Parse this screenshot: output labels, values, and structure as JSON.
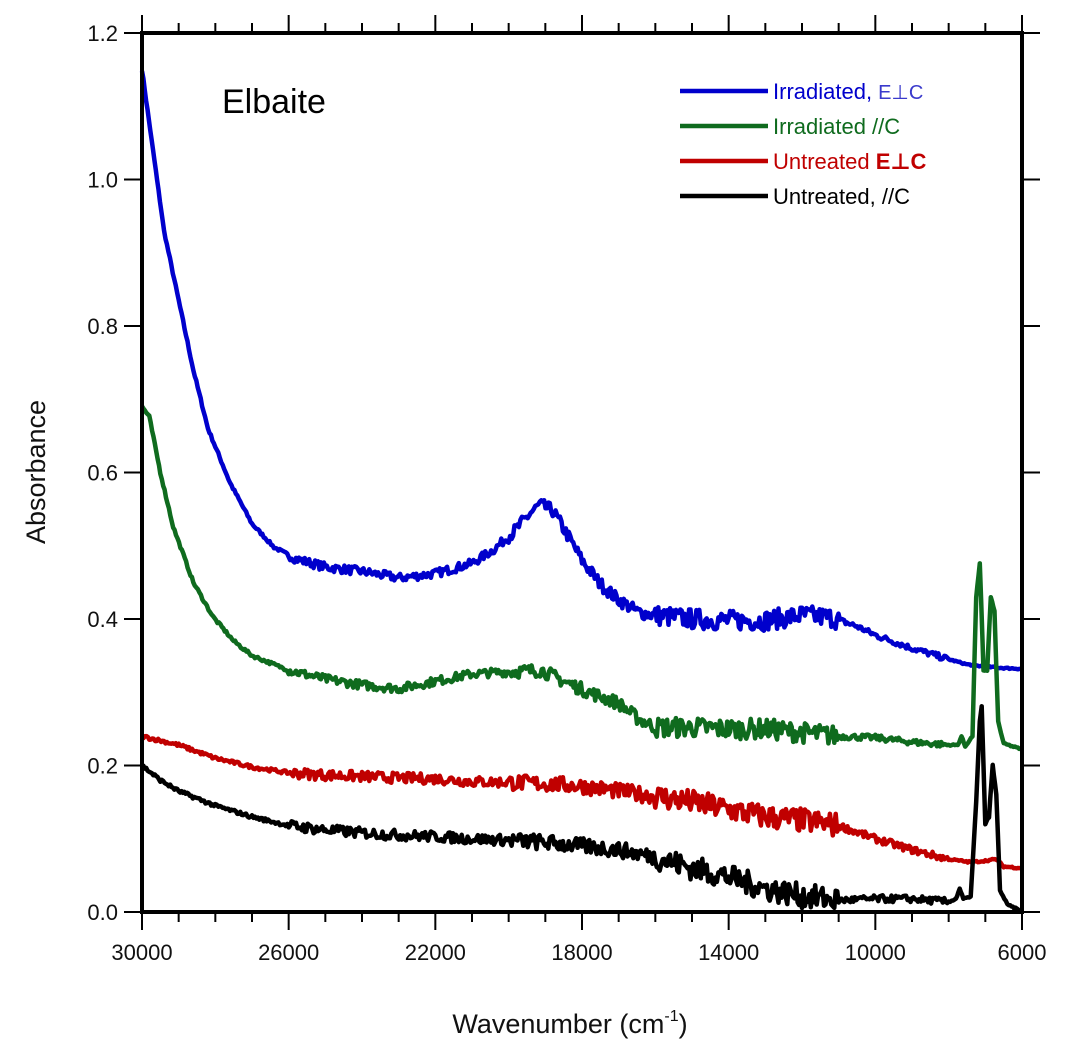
{
  "chart_data": {
    "type": "line",
    "title": "",
    "annotation": "Elbaite",
    "xlabel": "Wavenumber (cm",
    "xlabel_sup": "-1",
    "xlabel_close": ")",
    "ylabel": "Absorbance",
    "xlim": [
      30000,
      6000
    ],
    "ylim": [
      0,
      1.2
    ],
    "x_reversed": true,
    "x_major_ticks": [
      30000,
      26000,
      22000,
      18000,
      14000,
      10000,
      6000
    ],
    "x_tick_labels": [
      "30000",
      "26000",
      "22000",
      "18000",
      "14000",
      "10000",
      "6000"
    ],
    "x_minor_step": 1000,
    "y_major_ticks": [
      0.0,
      0.2,
      0.4,
      0.6,
      0.8,
      1.0,
      1.2
    ],
    "y_tick_labels": [
      "0.0",
      "0.2",
      "0.4",
      "0.6",
      "0.8",
      "1.0",
      "1.2"
    ],
    "grid": false,
    "legend_position": "top-right",
    "series": [
      {
        "name": "Irradiated, E⊥C",
        "legend_main": "Irradiated, ",
        "legend_suffix": "E⊥C",
        "color": "#0000cc",
        "points": [
          [
            30000,
            1.15
          ],
          [
            29700,
            1.04
          ],
          [
            29400,
            0.93
          ],
          [
            29000,
            0.835
          ],
          [
            28600,
            0.74
          ],
          [
            28200,
            0.66
          ],
          [
            27600,
            0.586
          ],
          [
            27000,
            0.53
          ],
          [
            26400,
            0.498
          ],
          [
            25800,
            0.482
          ],
          [
            25000,
            0.471
          ],
          [
            24000,
            0.465
          ],
          [
            23000,
            0.456
          ],
          [
            22000,
            0.462
          ],
          [
            21000,
            0.476
          ],
          [
            20400,
            0.495
          ],
          [
            19800,
            0.522
          ],
          [
            19400,
            0.545
          ],
          [
            19150,
            0.556
          ],
          [
            18800,
            0.548
          ],
          [
            18400,
            0.515
          ],
          [
            18000,
            0.48
          ],
          [
            17500,
            0.448
          ],
          [
            17100,
            0.43
          ],
          [
            16500,
            0.41
          ],
          [
            16000,
            0.405
          ],
          [
            15000,
            0.4
          ],
          [
            14000,
            0.398
          ],
          [
            13000,
            0.398
          ],
          [
            12000,
            0.405
          ],
          [
            11200,
            0.402
          ],
          [
            10500,
            0.39
          ],
          [
            10000,
            0.378
          ],
          [
            9000,
            0.36
          ],
          [
            8000,
            0.345
          ],
          [
            7500,
            0.338
          ],
          [
            7200,
            0.336
          ],
          [
            6500,
            0.333
          ],
          [
            6000,
            0.332
          ]
        ]
      },
      {
        "name": "Irradiated //C",
        "legend_main": "Irradiated //C",
        "legend_suffix": "",
        "color": "#0f6b1e",
        "points": [
          [
            30000,
            0.69
          ],
          [
            29800,
            0.676
          ],
          [
            29500,
            0.6
          ],
          [
            29150,
            0.526
          ],
          [
            28600,
            0.45
          ],
          [
            28064,
            0.403
          ],
          [
            27500,
            0.37
          ],
          [
            27000,
            0.35
          ],
          [
            26000,
            0.33
          ],
          [
            25000,
            0.318
          ],
          [
            24000,
            0.31
          ],
          [
            23000,
            0.305
          ],
          [
            22000,
            0.315
          ],
          [
            21000,
            0.325
          ],
          [
            20000,
            0.328
          ],
          [
            19100,
            0.33
          ],
          [
            18500,
            0.315
          ],
          [
            17800,
            0.3
          ],
          [
            17000,
            0.285
          ],
          [
            16500,
            0.265
          ],
          [
            16000,
            0.252
          ],
          [
            15000,
            0.252
          ],
          [
            14000,
            0.25
          ],
          [
            13000,
            0.25
          ],
          [
            12000,
            0.245
          ],
          [
            11000,
            0.24
          ],
          [
            10000,
            0.238
          ],
          [
            9000,
            0.232
          ],
          [
            8000,
            0.228
          ],
          [
            7750,
            0.228
          ],
          [
            7650,
            0.24
          ],
          [
            7550,
            0.226
          ],
          [
            7350,
            0.24
          ],
          [
            7250,
            0.43
          ],
          [
            7150,
            0.475
          ],
          [
            7050,
            0.33
          ],
          [
            6950,
            0.33
          ],
          [
            6850,
            0.43
          ],
          [
            6750,
            0.41
          ],
          [
            6650,
            0.26
          ],
          [
            6500,
            0.23
          ],
          [
            6000,
            0.222
          ]
        ]
      },
      {
        "name": "Untreated E⊥C",
        "legend_main": "Untreated ",
        "legend_suffix": "E⊥C",
        "color": "#c00000",
        "points": [
          [
            30000,
            0.24
          ],
          [
            29000,
            0.228
          ],
          [
            28000,
            0.21
          ],
          [
            27000,
            0.198
          ],
          [
            26000,
            0.19
          ],
          [
            25000,
            0.187
          ],
          [
            24000,
            0.185
          ],
          [
            23000,
            0.183
          ],
          [
            22000,
            0.182
          ],
          [
            21000,
            0.178
          ],
          [
            20000,
            0.177
          ],
          [
            19000,
            0.175
          ],
          [
            18000,
            0.172
          ],
          [
            17000,
            0.165
          ],
          [
            16000,
            0.158
          ],
          [
            15000,
            0.15
          ],
          [
            14000,
            0.14
          ],
          [
            13000,
            0.13
          ],
          [
            12000,
            0.125
          ],
          [
            11000,
            0.118
          ],
          [
            10000,
            0.1
          ],
          [
            9000,
            0.085
          ],
          [
            8000,
            0.072
          ],
          [
            7400,
            0.068
          ],
          [
            7000,
            0.07
          ],
          [
            6700,
            0.072
          ],
          [
            6500,
            0.062
          ],
          [
            6000,
            0.06
          ]
        ]
      },
      {
        "name": "Untreated, //C",
        "legend_main": "Untreated, //C",
        "legend_suffix": "",
        "color": "#000000",
        "points": [
          [
            30000,
            0.2
          ],
          [
            29500,
            0.18
          ],
          [
            29000,
            0.165
          ],
          [
            28500,
            0.155
          ],
          [
            28000,
            0.145
          ],
          [
            27000,
            0.13
          ],
          [
            26000,
            0.118
          ],
          [
            25000,
            0.112
          ],
          [
            24000,
            0.108
          ],
          [
            23000,
            0.105
          ],
          [
            22000,
            0.103
          ],
          [
            21000,
            0.1
          ],
          [
            20000,
            0.098
          ],
          [
            19000,
            0.095
          ],
          [
            18000,
            0.09
          ],
          [
            17000,
            0.085
          ],
          [
            16000,
            0.075
          ],
          [
            15000,
            0.06
          ],
          [
            14000,
            0.048
          ],
          [
            13000,
            0.032
          ],
          [
            12000,
            0.022
          ],
          [
            11000,
            0.016
          ],
          [
            10000,
            0.018
          ],
          [
            9000,
            0.018
          ],
          [
            8000,
            0.014
          ],
          [
            7800,
            0.018
          ],
          [
            7700,
            0.032
          ],
          [
            7600,
            0.018
          ],
          [
            7400,
            0.02
          ],
          [
            7250,
            0.15
          ],
          [
            7150,
            0.26
          ],
          [
            7100,
            0.28
          ],
          [
            7000,
            0.12
          ],
          [
            6900,
            0.13
          ],
          [
            6800,
            0.2
          ],
          [
            6700,
            0.16
          ],
          [
            6600,
            0.03
          ],
          [
            6400,
            0.01
          ],
          [
            6100,
            0.003
          ],
          [
            6000,
            0.0
          ]
        ]
      }
    ]
  }
}
